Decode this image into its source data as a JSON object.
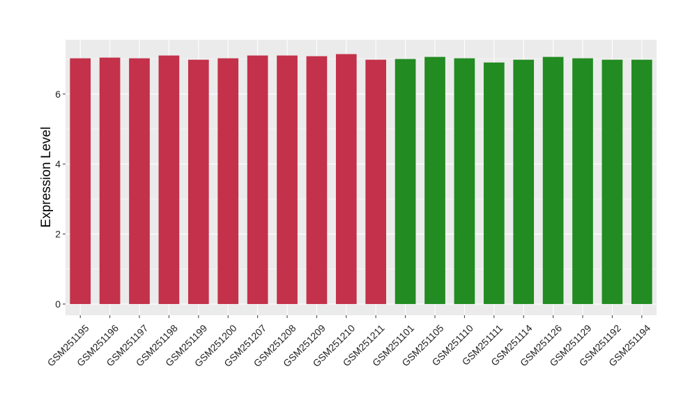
{
  "chart_data": {
    "type": "bar",
    "title": "",
    "xlabel": "",
    "ylabel": "Expression Level",
    "ylim": [
      -0.32,
      7.55
    ],
    "yticks": [
      0,
      2,
      4,
      6
    ],
    "grid": true,
    "legend": "none",
    "categories": [
      "GSM251195",
      "GSM251196",
      "GSM251197",
      "GSM251198",
      "GSM251199",
      "GSM251200",
      "GSM251207",
      "GSM251208",
      "GSM251209",
      "GSM251210",
      "GSM251211",
      "GSM251101",
      "GSM251105",
      "GSM251110",
      "GSM251111",
      "GSM251114",
      "GSM251126",
      "GSM251129",
      "GSM251192",
      "GSM251194"
    ],
    "values": [
      7.02,
      7.04,
      7.02,
      7.1,
      6.98,
      7.02,
      7.1,
      7.1,
      7.08,
      7.14,
      6.98,
      7.0,
      7.06,
      7.02,
      6.9,
      6.98,
      7.06,
      7.02,
      6.98,
      6.98
    ],
    "groups": [
      "red",
      "red",
      "red",
      "red",
      "red",
      "red",
      "red",
      "red",
      "red",
      "red",
      "red",
      "green",
      "green",
      "green",
      "green",
      "green",
      "green",
      "green",
      "green",
      "green"
    ],
    "colors": {
      "red": "#C3314A",
      "green": "#228B22",
      "panel": "#EBEBEB",
      "grid": "#FFFFFF"
    }
  }
}
